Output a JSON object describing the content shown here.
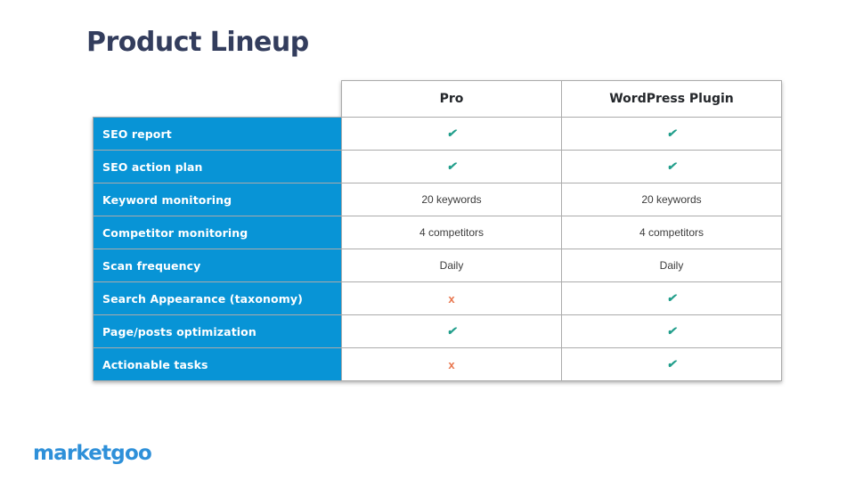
{
  "title": "Product Lineup",
  "brand": {
    "logo_text": "marketgoo"
  },
  "table": {
    "column_headers": [
      "Pro",
      "WordPress Plugin"
    ],
    "rows": [
      {
        "label": "SEO report",
        "cells": [
          "check",
          "check"
        ]
      },
      {
        "label": "SEO action plan",
        "cells": [
          "check",
          "check"
        ]
      },
      {
        "label": "Keyword monitoring",
        "cells": [
          "20 keywords",
          "20 keywords"
        ]
      },
      {
        "label": "Competitor monitoring",
        "cells": [
          "4 competitors",
          "4 competitors"
        ]
      },
      {
        "label": "Scan frequency",
        "cells": [
          "Daily",
          "Daily"
        ]
      },
      {
        "label": "Search Appearance (taxonomy)",
        "cells": [
          "cross",
          "check"
        ]
      },
      {
        "label": "Page/posts optimization",
        "cells": [
          "check",
          "check"
        ]
      },
      {
        "label": "Actionable tasks",
        "cells": [
          "cross",
          "check"
        ]
      }
    ],
    "glyphs": {
      "check": "✔",
      "cross": "x"
    }
  },
  "colors": {
    "accent_blue": "#0894D6",
    "check_green": "#219E8B",
    "cross_orange": "#E8764E",
    "title_navy": "#333D5D",
    "logo_blue": "#2E90D9",
    "border_gray": "#ABABAB"
  }
}
